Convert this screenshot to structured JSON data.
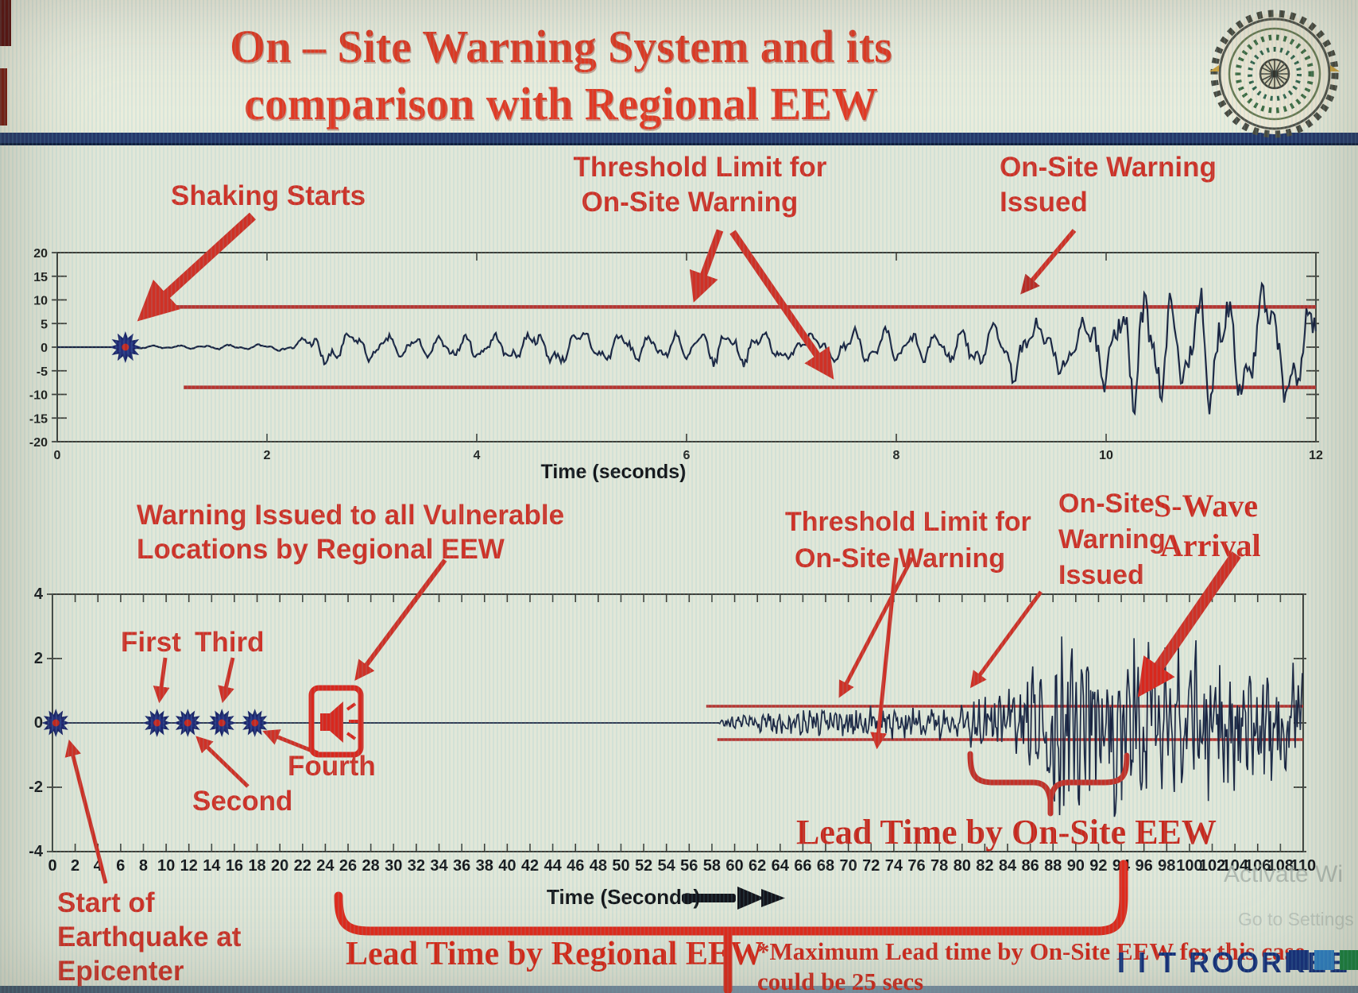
{
  "page": {
    "title_line1": "On – Site Warning System and its",
    "title_line2": "comparison with Regional EEW",
    "logo_name": "iit-roorkee-emblem",
    "brand_wordmark": "I I T ROORKEE",
    "watermark_line1": "Activate Wi",
    "watermark_line2": "Go to Settings",
    "colors": {
      "title_red": "#e23a24",
      "annotation_red": "#cf3126",
      "threshold_red": "#b63430",
      "bracket_red": "#e02b1d",
      "waveform_navy": "#1a2340",
      "navy_band": "#25386b",
      "brand_navy": "#14307e",
      "brand_blue": "#2c7fc6",
      "brand_green": "#18823f"
    }
  },
  "chart_data": [
    {
      "type": "line",
      "name": "onsite-warning-seismogram",
      "xlabel": "Time (seconds)",
      "xlim": [
        0,
        12
      ],
      "xticks": [
        0,
        2,
        4,
        6,
        8,
        10,
        12
      ],
      "ylim": [
        -20,
        20
      ],
      "yticks": [
        20,
        15,
        10,
        5,
        0,
        -5,
        -10,
        -15,
        -20
      ],
      "grid": false,
      "threshold_upper": 8.5,
      "threshold_lower": -8.5,
      "threshold_start_x": 1.1,
      "event_marker": {
        "x": 0.65,
        "y": 0
      },
      "warning_issued_x": 9.15,
      "envelope": [
        [
          0,
          0
        ],
        [
          0.68,
          0
        ],
        [
          0.72,
          0.5
        ],
        [
          0.8,
          0.35
        ],
        [
          2.15,
          0.8
        ],
        [
          2.35,
          2.2
        ],
        [
          2.5,
          4.6
        ],
        [
          2.9,
          3.4
        ],
        [
          3.6,
          2.6
        ],
        [
          4.3,
          3.4
        ],
        [
          4.9,
          4.4
        ],
        [
          5.6,
          3.2
        ],
        [
          6.3,
          4.4
        ],
        [
          7.0,
          3.4
        ],
        [
          7.7,
          4.6
        ],
        [
          8.3,
          3.8
        ],
        [
          8.8,
          5.2
        ],
        [
          9.05,
          8.3
        ],
        [
          9.3,
          6.4
        ],
        [
          9.7,
          7.5
        ],
        [
          10.0,
          11.5
        ],
        [
          10.35,
          16.5
        ],
        [
          10.65,
          12.5
        ],
        [
          10.95,
          17.5
        ],
        [
          11.3,
          13.0
        ],
        [
          11.6,
          15.5
        ],
        [
          12,
          14.0
        ]
      ],
      "annotations": {
        "shaking_starts": "Shaking Starts",
        "threshold_line1": "Threshold Limit for",
        "threshold_line2": "On-Site Warning",
        "issued_line1": "On-Site Warning",
        "issued_line2": "Issued"
      }
    },
    {
      "type": "line",
      "name": "regional-vs-onsite-seismogram",
      "xlabel": "Time (Seconds)",
      "xlim": [
        0,
        110
      ],
      "xticks": [
        0,
        2,
        4,
        6,
        8,
        10,
        12,
        14,
        16,
        18,
        20,
        22,
        24,
        26,
        28,
        30,
        32,
        34,
        36,
        38,
        40,
        42,
        44,
        46,
        48,
        50,
        52,
        54,
        56,
        58,
        60,
        62,
        64,
        66,
        68,
        70,
        72,
        74,
        76,
        78,
        80,
        82,
        84,
        86,
        88,
        90,
        92,
        94,
        96,
        98,
        100,
        102,
        104,
        106,
        108,
        110
      ],
      "ylim": [
        -4,
        4
      ],
      "yticks": [
        4,
        2,
        0,
        -2,
        -4
      ],
      "grid": false,
      "threshold_upper": 0.52,
      "threshold_lower": -0.52,
      "threshold_start_x": 57.5,
      "p_wave_onset_x": 58.7,
      "onsite_warning_issued_x": 80.5,
      "s_wave_arrival_x": 93.5,
      "regional_warning_icon_x": 24.5,
      "markers": [
        {
          "x": 0.3,
          "label": "Start of Earthquake at Epicenter"
        },
        {
          "x": 9.2,
          "label": "First"
        },
        {
          "x": 11.9,
          "label": "Second"
        },
        {
          "x": 14.9,
          "label": "Third"
        },
        {
          "x": 17.8,
          "label": "Fourth"
        }
      ],
      "braces": {
        "onsite_lead": {
          "from": 80.5,
          "to": 94.5,
          "label": "Lead Time by On-Site EEW"
        },
        "regional_lead": {
          "from": 25.2,
          "to": 94.2,
          "label": "Lead Time by Regional EEW"
        }
      },
      "envelope": [
        [
          0,
          0
        ],
        [
          58.6,
          0
        ],
        [
          59,
          0.12
        ],
        [
          60.5,
          0.22
        ],
        [
          62,
          0.32
        ],
        [
          64,
          0.4
        ],
        [
          67,
          0.42
        ],
        [
          70,
          0.46
        ],
        [
          73,
          0.5
        ],
        [
          76,
          0.48
        ],
        [
          79,
          0.55
        ],
        [
          81,
          0.7
        ],
        [
          83,
          0.9
        ],
        [
          85,
          1.3
        ],
        [
          87,
          1.9
        ],
        [
          88.5,
          2.6
        ],
        [
          90,
          2.9
        ],
        [
          91.5,
          2.2
        ],
        [
          93,
          2.9
        ],
        [
          94.5,
          2.6
        ],
        [
          96,
          2.2
        ],
        [
          98,
          2.4
        ],
        [
          100,
          2.3
        ],
        [
          102,
          2.1
        ],
        [
          104,
          1.9
        ],
        [
          106,
          1.8
        ],
        [
          108,
          1.9
        ],
        [
          110,
          1.6
        ]
      ],
      "annotations": {
        "warning_regional_line1": "Warning Issued to all Vulnerable",
        "warning_regional_line2": "Locations by Regional EEW",
        "marker_first": "First",
        "marker_second": "Second",
        "marker_third": "Third",
        "marker_fourth": "Fourth",
        "threshold_line1": "Threshold Limit for",
        "threshold_line2": "On-Site Warning",
        "issued_line1": "On-Site",
        "issued_line2": "Warning",
        "issued_line3": "Issued",
        "swave_line1": "S-Wave",
        "swave_line2": "Arrival",
        "start_line1": "Start of",
        "start_line2": "Earthquake at",
        "start_line3": "Epicenter",
        "footnote_line1": "*Maximum Lead time by On-Site EEW for this case",
        "footnote_line2": "could be 25 secs"
      }
    }
  ]
}
